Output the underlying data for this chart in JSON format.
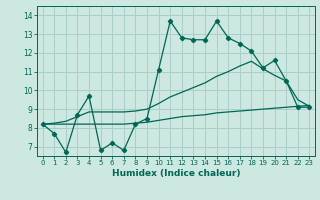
{
  "title": "",
  "xlabel": "Humidex (Indice chaleur)",
  "bg_color": "#cce8e0",
  "grid_color": "#aacfc8",
  "line_color": "#006655",
  "xlim": [
    -0.5,
    23.5
  ],
  "ylim": [
    6.5,
    14.5
  ],
  "xticks": [
    0,
    1,
    2,
    3,
    4,
    5,
    6,
    7,
    8,
    9,
    10,
    11,
    12,
    13,
    14,
    15,
    16,
    17,
    18,
    19,
    20,
    21,
    22,
    23
  ],
  "yticks": [
    7,
    8,
    9,
    10,
    11,
    12,
    13,
    14
  ],
  "series1_x": [
    0,
    1,
    2,
    3,
    4,
    5,
    6,
    7,
    8,
    9,
    10,
    11,
    12,
    13,
    14,
    15,
    16,
    17,
    18,
    19,
    20,
    21,
    22,
    23
  ],
  "series1_y": [
    8.2,
    7.7,
    6.7,
    8.7,
    9.7,
    6.8,
    7.2,
    6.8,
    8.2,
    8.5,
    11.1,
    13.7,
    12.8,
    12.7,
    12.7,
    13.7,
    12.8,
    12.5,
    12.1,
    11.2,
    11.6,
    10.5,
    9.1,
    9.1
  ],
  "series2_x": [
    0,
    1,
    2,
    3,
    4,
    5,
    6,
    7,
    8,
    9,
    10,
    11,
    12,
    13,
    14,
    15,
    16,
    17,
    18,
    19,
    20,
    21,
    22,
    23
  ],
  "series2_y": [
    8.2,
    8.2,
    8.2,
    8.2,
    8.2,
    8.2,
    8.2,
    8.2,
    8.25,
    8.3,
    8.4,
    8.5,
    8.6,
    8.65,
    8.7,
    8.8,
    8.85,
    8.9,
    8.95,
    9.0,
    9.05,
    9.1,
    9.15,
    9.2
  ],
  "series3_x": [
    0,
    1,
    2,
    3,
    4,
    5,
    6,
    7,
    8,
    9,
    10,
    11,
    12,
    13,
    14,
    15,
    16,
    17,
    18,
    19,
    20,
    21,
    22,
    23
  ],
  "series3_y": [
    8.2,
    8.25,
    8.35,
    8.6,
    8.85,
    8.85,
    8.85,
    8.85,
    8.9,
    9.0,
    9.3,
    9.65,
    9.9,
    10.15,
    10.4,
    10.75,
    11.0,
    11.3,
    11.55,
    11.15,
    10.8,
    10.5,
    9.5,
    9.15
  ]
}
